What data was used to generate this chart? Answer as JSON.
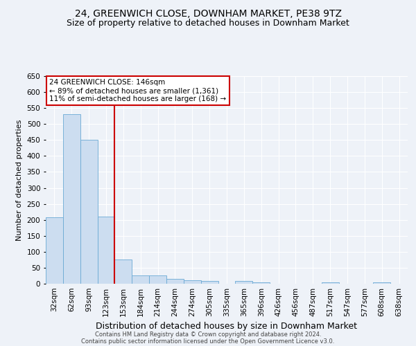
{
  "title": "24, GREENWICH CLOSE, DOWNHAM MARKET, PE38 9TZ",
  "subtitle": "Size of property relative to detached houses in Downham Market",
  "xlabel": "Distribution of detached houses by size in Downham Market",
  "ylabel": "Number of detached properties",
  "categories": [
    "32sqm",
    "62sqm",
    "93sqm",
    "123sqm",
    "153sqm",
    "184sqm",
    "214sqm",
    "244sqm",
    "274sqm",
    "305sqm",
    "335sqm",
    "365sqm",
    "396sqm",
    "426sqm",
    "456sqm",
    "487sqm",
    "517sqm",
    "547sqm",
    "577sqm",
    "608sqm",
    "638sqm"
  ],
  "values": [
    207,
    530,
    450,
    210,
    75,
    27,
    26,
    15,
    11,
    8,
    0,
    8,
    5,
    0,
    0,
    0,
    5,
    0,
    0,
    5,
    0
  ],
  "bar_color": "#ccddf0",
  "bar_edge_color": "#6aaad4",
  "vline_color": "#cc0000",
  "annotation_text": "24 GREENWICH CLOSE: 146sqm\n← 89% of detached houses are smaller (1,361)\n11% of semi-detached houses are larger (168) →",
  "annotation_box_color": "white",
  "annotation_box_edge_color": "#cc0000",
  "ylim": [
    0,
    650
  ],
  "yticks": [
    0,
    50,
    100,
    150,
    200,
    250,
    300,
    350,
    400,
    450,
    500,
    550,
    600,
    650
  ],
  "title_fontsize": 10,
  "subtitle_fontsize": 9,
  "xlabel_fontsize": 9,
  "ylabel_fontsize": 8,
  "tick_fontsize": 7.5,
  "annotation_fontsize": 7.5,
  "footer_line1": "Contains HM Land Registry data © Crown copyright and database right 2024.",
  "footer_line2": "Contains public sector information licensed under the Open Government Licence v3.0.",
  "background_color": "#eef2f8",
  "grid_color": "white"
}
